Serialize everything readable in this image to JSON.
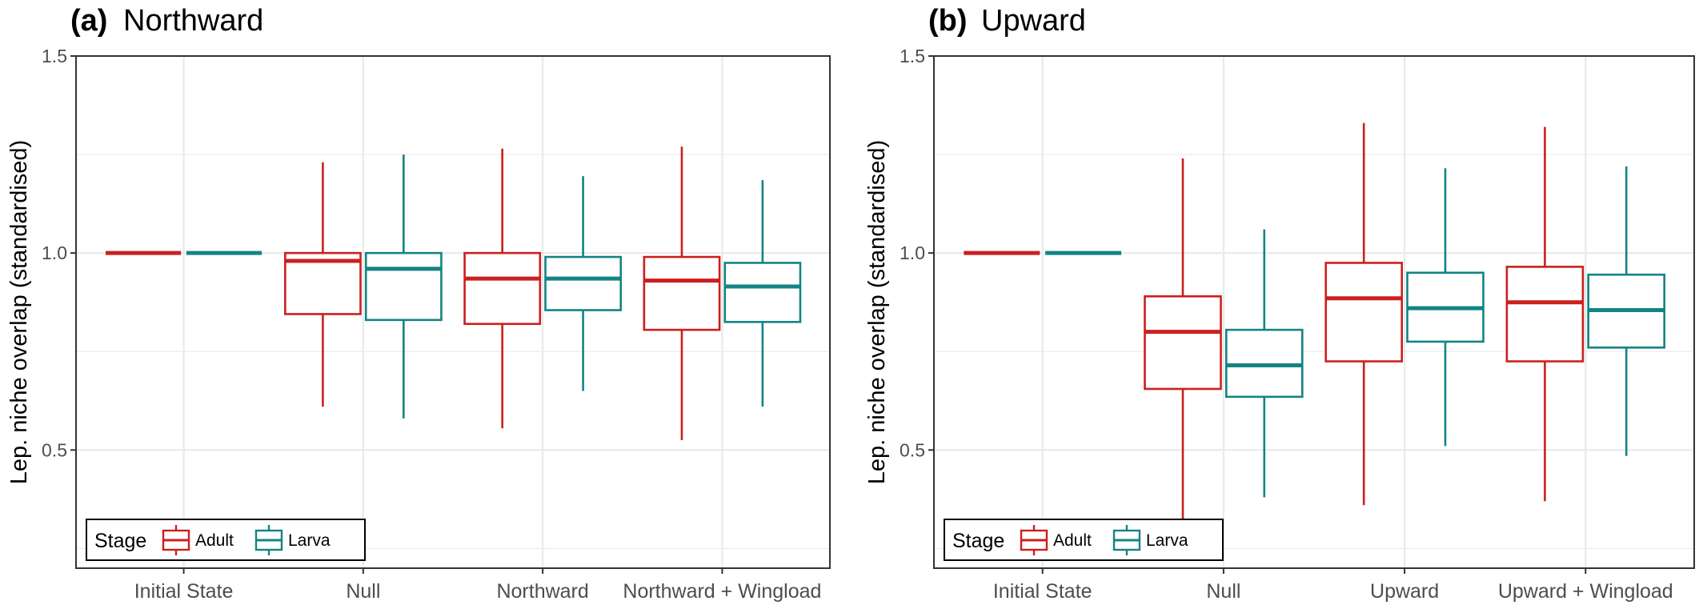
{
  "colors": {
    "adult": "#cc1f1f",
    "larva": "#138484",
    "grid": "#ebebeb",
    "panel_border": "#333333"
  },
  "chart_data": [
    {
      "type": "boxplot",
      "title_tag": "(a)",
      "title": "Northward",
      "ylabel": "Lep. niche overlap (standardised)",
      "ylim": [
        0.2,
        1.5
      ],
      "yticks": [
        0.5,
        1.0,
        1.5
      ],
      "ytick_labels": [
        "0.5",
        "1.0",
        "1.5"
      ],
      "grid": true,
      "legend": {
        "title": "Stage",
        "position": "bottom-left",
        "entries": [
          "Adult",
          "Larva"
        ]
      },
      "categories": [
        "Initial State",
        "Null",
        "Northward",
        "Northward + Wingload"
      ],
      "series": [
        {
          "name": "Adult",
          "color": "#cc1f1f",
          "boxes": [
            {
              "min": 1.0,
              "q1": 1.0,
              "median": 1.0,
              "q3": 1.0,
              "max": 1.0
            },
            {
              "min": 0.61,
              "q1": 0.845,
              "median": 0.98,
              "q3": 1.0,
              "max": 1.23
            },
            {
              "min": 0.555,
              "q1": 0.82,
              "median": 0.935,
              "q3": 1.0,
              "max": 1.265
            },
            {
              "min": 0.525,
              "q1": 0.805,
              "median": 0.93,
              "q3": 0.99,
              "max": 1.27
            }
          ]
        },
        {
          "name": "Larva",
          "color": "#138484",
          "boxes": [
            {
              "min": 1.0,
              "q1": 1.0,
              "median": 1.0,
              "q3": 1.0,
              "max": 1.0
            },
            {
              "min": 0.58,
              "q1": 0.83,
              "median": 0.96,
              "q3": 1.0,
              "max": 1.25
            },
            {
              "min": 0.65,
              "q1": 0.855,
              "median": 0.935,
              "q3": 0.99,
              "max": 1.195
            },
            {
              "min": 0.61,
              "q1": 0.825,
              "median": 0.915,
              "q3": 0.975,
              "max": 1.185
            }
          ]
        }
      ]
    },
    {
      "type": "boxplot",
      "title_tag": "(b)",
      "title": "Upward",
      "ylabel": "Lep. niche overlap (standardised)",
      "ylim": [
        0.2,
        1.5
      ],
      "yticks": [
        0.5,
        1.0,
        1.5
      ],
      "ytick_labels": [
        "0.5",
        "1.0",
        "1.5"
      ],
      "grid": true,
      "legend": {
        "title": "Stage",
        "position": "bottom-left",
        "entries": [
          "Adult",
          "Larva"
        ]
      },
      "categories": [
        "Initial State",
        "Null",
        "Upward",
        "Upward + Wingload"
      ],
      "series": [
        {
          "name": "Adult",
          "color": "#cc1f1f",
          "boxes": [
            {
              "min": 1.0,
              "q1": 1.0,
              "median": 1.0,
              "q3": 1.0,
              "max": 1.0
            },
            {
              "min": 0.305,
              "q1": 0.655,
              "median": 0.8,
              "q3": 0.89,
              "max": 1.24
            },
            {
              "min": 0.36,
              "q1": 0.725,
              "median": 0.885,
              "q3": 0.975,
              "max": 1.33
            },
            {
              "min": 0.37,
              "q1": 0.725,
              "median": 0.875,
              "q3": 0.965,
              "max": 1.32
            }
          ]
        },
        {
          "name": "Larva",
          "color": "#138484",
          "boxes": [
            {
              "min": 1.0,
              "q1": 1.0,
              "median": 1.0,
              "q3": 1.0,
              "max": 1.0
            },
            {
              "min": 0.38,
              "q1": 0.635,
              "median": 0.715,
              "q3": 0.805,
              "max": 1.06
            },
            {
              "min": 0.51,
              "q1": 0.775,
              "median": 0.86,
              "q3": 0.95,
              "max": 1.215
            },
            {
              "min": 0.485,
              "q1": 0.76,
              "median": 0.855,
              "q3": 0.945,
              "max": 1.22
            }
          ]
        }
      ]
    }
  ]
}
